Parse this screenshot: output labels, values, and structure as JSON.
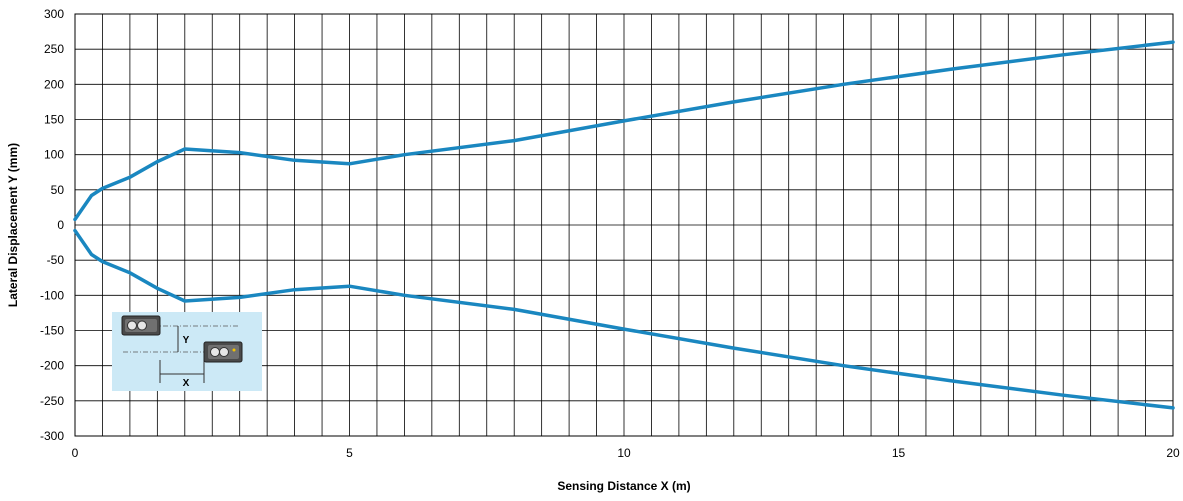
{
  "chart_data": {
    "type": "line",
    "title": "",
    "xlabel": "Sensing Distance X (m)",
    "ylabel": "Lateral Displacement Y (mm)",
    "xlim": [
      0,
      20
    ],
    "ylim": [
      -300,
      300
    ],
    "x_ticks": [
      0,
      5,
      10,
      15,
      20
    ],
    "y_ticks": [
      -300,
      -250,
      -200,
      -150,
      -100,
      -50,
      0,
      50,
      100,
      150,
      200,
      250,
      300
    ],
    "grid": true,
    "grid_x_step": 0.5,
    "grid_y_step": 50,
    "line_color": "#1a87c0",
    "series": [
      {
        "x": [
          0,
          0.3,
          0.5,
          1,
          1.5,
          2,
          3,
          4,
          5,
          6,
          8,
          10,
          12,
          14,
          16,
          18,
          20
        ],
        "y": [
          8,
          42,
          52,
          68,
          90,
          108,
          103,
          92,
          87,
          100,
          120,
          148,
          175,
          200,
          222,
          242,
          260
        ]
      },
      {
        "x": [
          0,
          0.3,
          0.5,
          1,
          1.5,
          2,
          3,
          4,
          5,
          6,
          8,
          10,
          12,
          14,
          16,
          18,
          20
        ],
        "y": [
          -8,
          -42,
          -52,
          -68,
          -90,
          -108,
          -103,
          -92,
          -87,
          -100,
          -120,
          -148,
          -175,
          -200,
          -222,
          -242,
          -260
        ]
      }
    ],
    "inset": {
      "background": "#cce9f6",
      "label_y": "Y",
      "label_x": "X"
    }
  }
}
